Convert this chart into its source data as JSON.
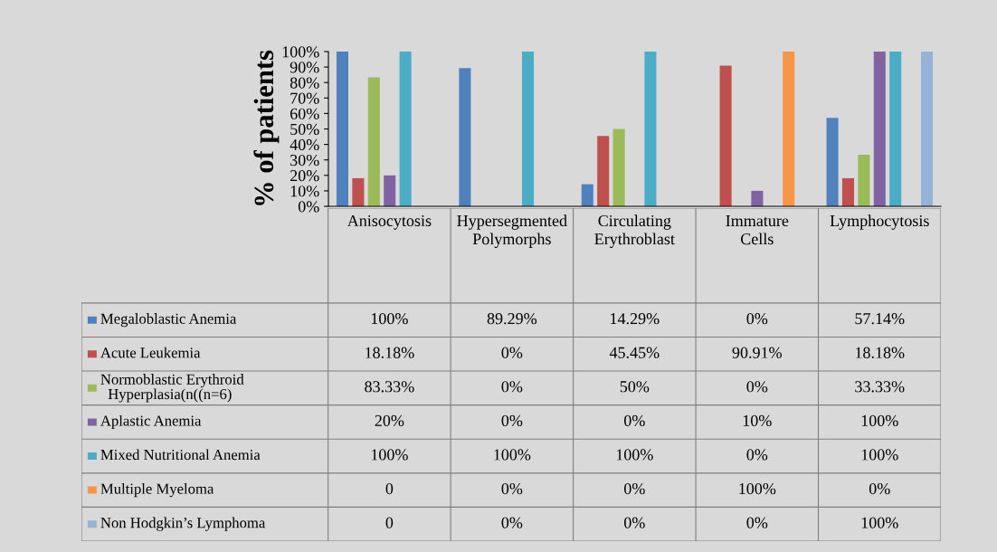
{
  "chart_data": {
    "type": "bar",
    "ylabel": "% of patients",
    "categories": [
      "Anisocytosis",
      "Hypersegmented Polymorphs",
      "Circulating Erythroblast",
      "Immature Cells",
      "Lymphocytosis"
    ],
    "ylim": [
      0,
      100
    ],
    "yticks": [
      {
        "value": 0,
        "label": "0%"
      },
      {
        "value": 10,
        "label": "10%"
      },
      {
        "value": 20,
        "label": "20%"
      },
      {
        "value": 30,
        "label": "30%"
      },
      {
        "value": 40,
        "label": "40%"
      },
      {
        "value": 50,
        "label": "50%"
      },
      {
        "value": 60,
        "label": "60%"
      },
      {
        "value": 70,
        "label": "70%"
      },
      {
        "value": 80,
        "label": "80%"
      },
      {
        "value": 90,
        "label": "90%"
      },
      {
        "value": 100,
        "label": "100%"
      }
    ],
    "grid": false,
    "legend": "bottom left",
    "series": [
      {
        "name": "Megaloblastic Anemia",
        "color": "#4f81bd",
        "values": [
          100,
          89.29,
          14.29,
          0,
          57.14
        ],
        "value_labels": [
          "100%",
          "89.29%",
          "14.29%",
          "0%",
          "57.14%"
        ]
      },
      {
        "name": "Acute Leukemia",
        "color": "#c0504d",
        "values": [
          18.18,
          0,
          45.45,
          90.91,
          18.18
        ],
        "value_labels": [
          "18.18%",
          "0%",
          "45.45%",
          "90.91%",
          "18.18%"
        ]
      },
      {
        "name": "Normoblastic Erythroid Hyperplasia(n((n=6)",
        "color": "#9bbb59",
        "values": [
          83.33,
          0,
          50,
          0,
          33.33
        ],
        "value_labels": [
          "83.33%",
          "0%",
          "50%",
          "0%",
          "33.33%"
        ]
      },
      {
        "name": "Aplastic Anemia",
        "color": "#8064a2",
        "values": [
          20,
          0,
          0,
          10,
          100
        ],
        "value_labels": [
          "20%",
          "0%",
          "0%",
          "10%",
          "100%"
        ]
      },
      {
        "name": "Mixed Nutritional Anemia",
        "color": "#4bacc6",
        "values": [
          100,
          100,
          100,
          0,
          100
        ],
        "value_labels": [
          "100%",
          "100%",
          "100%",
          "0%",
          "100%"
        ]
      },
      {
        "name": "Multiple Myeloma",
        "color": "#f79646",
        "values": [
          0,
          0,
          0,
          100,
          0
        ],
        "value_labels": [
          "0",
          "0%",
          "0%",
          "100%",
          "0%"
        ]
      },
      {
        "name": "Non Hodgkin’s Lymphoma",
        "color": "#95b3d7",
        "values": [
          0,
          0,
          0,
          0,
          100
        ],
        "value_labels": [
          "0",
          "0%",
          "0%",
          "0%",
          "100%"
        ]
      }
    ]
  }
}
